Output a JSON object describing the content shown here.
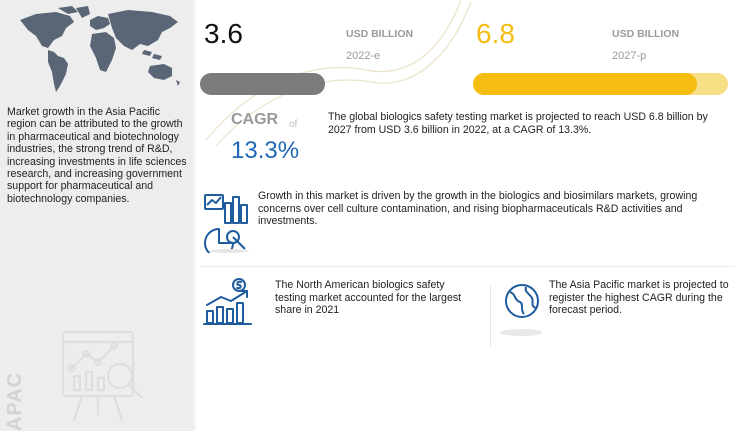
{
  "sidebar": {
    "description": "Market growth in the Asia Pacific region can be attributed to the growth in pharmaceutical and biotechnology industries, the strong trend of R&D, increasing investments in life sciences research, and increasing government support for pharmaceutical and biotechnology companies.",
    "region_label": "APAC",
    "icons": {
      "map": "world-map-icon",
      "presentation": "presentation-board-icon"
    }
  },
  "market": {
    "value_2022": "3.6",
    "unit_2022": "USD BILLION",
    "year_2022": "2022-e",
    "value_2027": "6.8",
    "unit_2027": "USD BILLION",
    "year_2027": "2027-p",
    "cagr_label": "CAGR",
    "cagr_of": "of",
    "cagr_value": "13.3%",
    "summary": "The global biologics safety testing market is projected to reach USD 6.8 billion by 2027 from USD 3.6 billion in 2022, at a CAGR of 13.3%."
  },
  "drivers": {
    "text": "Growth in this market is driven by the growth in the biologics and biosimilars markets, growing concerns over cell culture contamination, and rising biopharmaceuticals R&D activities and investments.",
    "icon": "analytics-chart-icon"
  },
  "north_america": {
    "text": "The North American biologics safety testing market accounted for the largest share in 2021",
    "icon": "bar-growth-dollar-icon"
  },
  "asia_pacific": {
    "text": "The Asia Pacific market is projected to register the highest CAGR during the forecast period.",
    "icon": "globe-icon"
  },
  "colors": {
    "accent_yellow": "#f5bc12",
    "accent_blue": "#1e67b7",
    "grey_bar": "#7b7b7b"
  }
}
